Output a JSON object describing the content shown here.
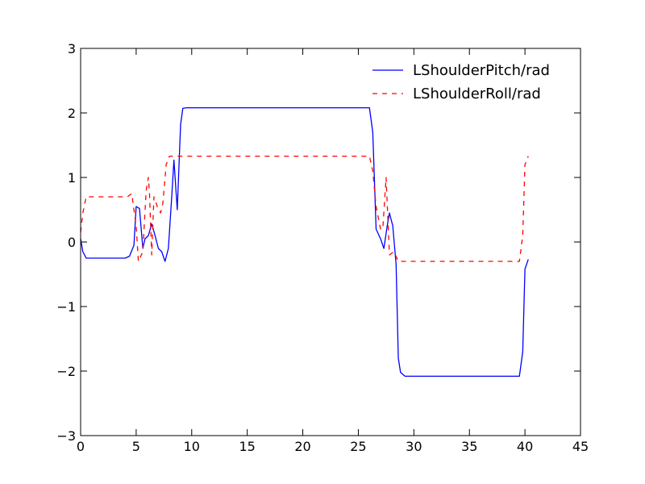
{
  "chart_data": {
    "type": "line",
    "title": "",
    "xlabel": "",
    "ylabel": "",
    "xlim": [
      0,
      45
    ],
    "ylim": [
      -3,
      3
    ],
    "xticks": [
      0,
      5,
      10,
      15,
      20,
      25,
      30,
      35,
      40,
      45
    ],
    "yticks": [
      -3,
      -2,
      -1,
      0,
      1,
      2,
      3
    ],
    "xtick_labels": [
      "0",
      "5",
      "10",
      "15",
      "20",
      "25",
      "30",
      "35",
      "40",
      "45"
    ],
    "ytick_labels": [
      "−3",
      "−2",
      "−1",
      "0",
      "1",
      "2",
      "3"
    ],
    "grid": false,
    "legend_position": "top-right",
    "series": [
      {
        "name": "LShoulderPitch/rad",
        "color": "#0000ff",
        "linestyle": "solid",
        "x": [
          0,
          0.2,
          0.5,
          1,
          2,
          3,
          4,
          4.4,
          4.8,
          5.0,
          5.3,
          5.6,
          5.8,
          6.1,
          6.4,
          6.7,
          7.0,
          7.3,
          7.6,
          7.9,
          8.2,
          8.4,
          8.7,
          9.0,
          9.2,
          9.5,
          10,
          15,
          20,
          25,
          26.0,
          26.3,
          26.6,
          27.0,
          27.3,
          27.6,
          27.8,
          28.1,
          28.4,
          28.6,
          28.8,
          29.2,
          30,
          35,
          39.5,
          39.8,
          40.0,
          40.3
        ],
        "y": [
          0.05,
          -0.15,
          -0.25,
          -0.25,
          -0.25,
          -0.25,
          -0.25,
          -0.22,
          -0.05,
          0.55,
          0.52,
          -0.1,
          0.05,
          0.1,
          0.28,
          0.1,
          -0.1,
          -0.15,
          -0.3,
          -0.1,
          0.7,
          1.27,
          0.5,
          1.82,
          2.07,
          2.08,
          2.08,
          2.08,
          2.08,
          2.08,
          2.08,
          1.7,
          0.2,
          0.05,
          -0.1,
          0.25,
          0.45,
          0.25,
          -0.35,
          -1.8,
          -2.02,
          -2.08,
          -2.08,
          -2.08,
          -2.08,
          -1.7,
          -0.42,
          -0.27
        ]
      },
      {
        "name": "LShoulderRoll/rad",
        "color": "#ff0000",
        "linestyle": "dashed",
        "x": [
          0,
          0.2,
          0.5,
          1,
          2,
          3,
          4,
          4.2,
          4.6,
          5.0,
          5.2,
          5.6,
          5.9,
          6.1,
          6.2,
          6.4,
          6.6,
          6.9,
          7.2,
          7.4,
          7.7,
          8.0,
          8.2,
          8.5,
          9.0,
          10,
          15,
          20,
          25,
          26.0,
          26.3,
          26.6,
          27.0,
          27.2,
          27.5,
          27.8,
          28.2,
          28.6,
          29.0,
          30,
          35,
          39.5,
          39.8,
          40.0,
          40.3
        ],
        "y": [
          0.15,
          0.45,
          0.7,
          0.7,
          0.7,
          0.7,
          0.7,
          0.7,
          0.75,
          0.25,
          -0.3,
          -0.15,
          0.8,
          1.0,
          0.75,
          -0.2,
          0.7,
          0.55,
          0.45,
          0.6,
          1.2,
          1.33,
          1.33,
          1.33,
          1.33,
          1.33,
          1.33,
          1.33,
          1.33,
          1.33,
          1.1,
          0.55,
          0.2,
          0.2,
          1.0,
          -0.2,
          -0.15,
          -0.3,
          -0.3,
          -0.3,
          -0.3,
          -0.3,
          0.1,
          1.2,
          1.33
        ]
      }
    ]
  }
}
